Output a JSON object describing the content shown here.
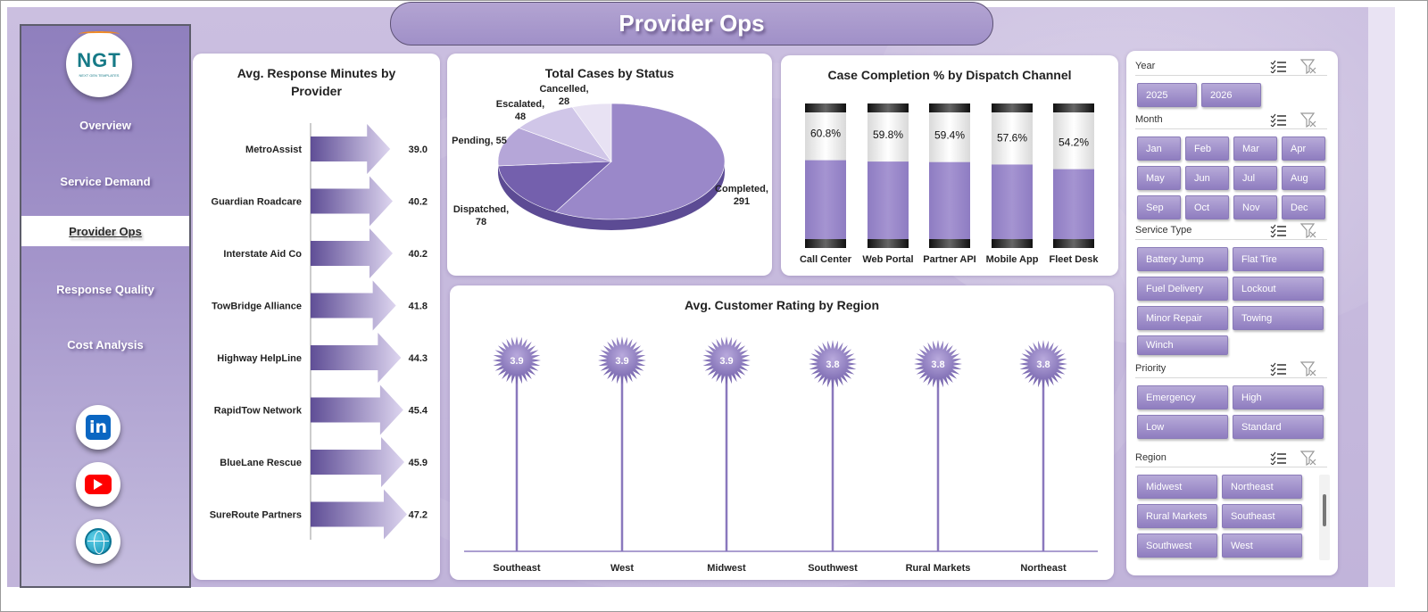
{
  "title": "Provider Ops",
  "logo": {
    "text": "NGT",
    "subtext": "NEXT GEN TEMPLATES"
  },
  "nav": [
    {
      "label": "Overview",
      "active": false
    },
    {
      "label": "Service Demand",
      "active": false
    },
    {
      "label": "Provider Ops",
      "active": true
    },
    {
      "label": "Response Quality",
      "active": false
    },
    {
      "label": "Cost Analysis",
      "active": false
    }
  ],
  "social": [
    "linkedin-icon",
    "youtube-icon",
    "globe-icon"
  ],
  "social_text": {
    "linkedin": "in"
  },
  "colors": {
    "accent": "#8a7bbd",
    "accent_dark": "#6a5aa0",
    "accent_light": "#c9bfe3",
    "panel_bg": "#ffffff"
  },
  "chart_data": [
    {
      "type": "bar",
      "orientation": "horizontal",
      "title": "Avg. Response Minutes by Provider",
      "categories": [
        "MetroAssist",
        "Guardian Roadcare",
        "Interstate Aid Co",
        "TowBridge Alliance",
        "Highway HelpLine",
        "RapidTow Network",
        "BlueLane Rescue",
        "SureRoute Partners"
      ],
      "values": [
        39.0,
        40.2,
        40.2,
        41.8,
        44.3,
        45.4,
        45.9,
        47.2
      ],
      "value_labels": [
        "39.0",
        "40.2",
        "40.2",
        "41.8",
        "44.3",
        "45.4",
        "45.9",
        "47.2"
      ]
    },
    {
      "type": "pie",
      "title": "Total Cases by Status",
      "categories": [
        "Completed",
        "Dispatched",
        "Pending",
        "Escalated",
        "Cancelled"
      ],
      "values": [
        291,
        78,
        55,
        48,
        28
      ],
      "labels": [
        [
          "Completed,",
          "291"
        ],
        [
          "Dispatched,",
          "78"
        ],
        [
          "Pending, 55"
        ],
        [
          "Escalated,",
          "48"
        ],
        [
          "Cancelled,",
          "28"
        ]
      ]
    },
    {
      "type": "bar",
      "title": "Case Completion % by Dispatch Channel",
      "categories": [
        "Call Center",
        "Web Portal",
        "Partner API",
        "Mobile App",
        "Fleet Desk"
      ],
      "values": [
        60.8,
        59.8,
        59.4,
        57.6,
        54.2
      ],
      "value_labels": [
        "60.8%",
        "59.8%",
        "59.4%",
        "57.6%",
        "54.2%"
      ],
      "ylim": [
        0,
        100
      ]
    },
    {
      "type": "scatter",
      "title": "Avg. Customer Rating by Region",
      "categories": [
        "Southeast",
        "West",
        "Midwest",
        "Southwest",
        "Rural Markets",
        "Northeast"
      ],
      "values": [
        3.9,
        3.9,
        3.9,
        3.8,
        3.8,
        3.8
      ],
      "value_labels": [
        "3.9",
        "3.9",
        "3.9",
        "3.8",
        "3.8",
        "3.8"
      ]
    }
  ],
  "filters": {
    "year": {
      "title": "Year",
      "options": [
        "2025",
        "2026"
      ]
    },
    "month": {
      "title": "Month",
      "options": [
        "Jan",
        "Feb",
        "Mar",
        "Apr",
        "May",
        "Jun",
        "Jul",
        "Aug",
        "Sep",
        "Oct",
        "Nov",
        "Dec"
      ]
    },
    "service_type": {
      "title": "Service Type",
      "options": [
        "Battery Jump",
        "Flat Tire",
        "Fuel Delivery",
        "Lockout",
        "Minor Repair",
        "Towing",
        "Winch"
      ]
    },
    "priority": {
      "title": "Priority",
      "options": [
        "Emergency",
        "High",
        "Low",
        "Standard"
      ]
    },
    "region": {
      "title": "Region",
      "options": [
        "Midwest",
        "Northeast",
        "Rural Markets",
        "Southeast",
        "Southwest",
        "West"
      ]
    }
  }
}
